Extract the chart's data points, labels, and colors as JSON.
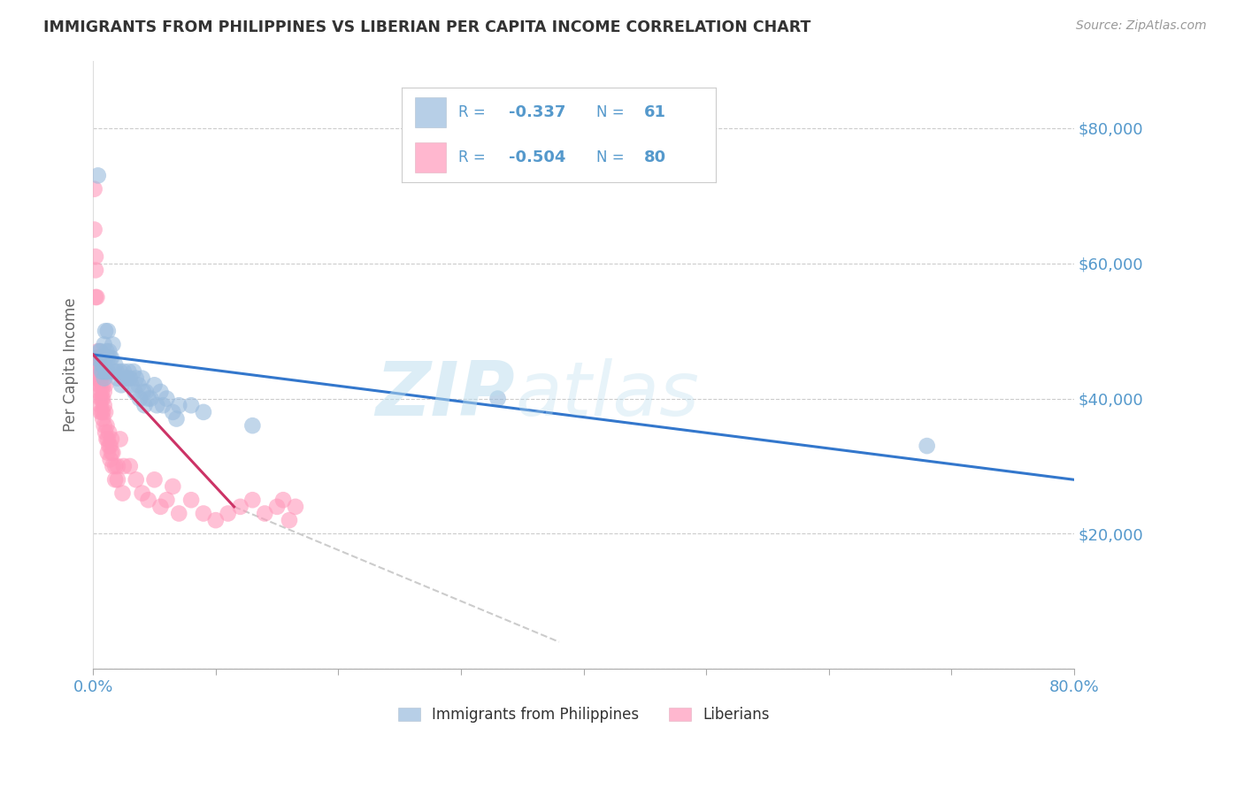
{
  "title": "IMMIGRANTS FROM PHILIPPINES VS LIBERIAN PER CAPITA INCOME CORRELATION CHART",
  "source": "Source: ZipAtlas.com",
  "ylabel": "Per Capita Income",
  "yticks": [
    0,
    20000,
    40000,
    60000,
    80000
  ],
  "ytick_labels": [
    "",
    "$20,000",
    "$40,000",
    "$60,000",
    "$80,000"
  ],
  "xlim": [
    0.0,
    0.8
  ],
  "ylim": [
    0,
    90000
  ],
  "watermark_zip": "ZIP",
  "watermark_atlas": "atlas",
  "blue_color": "#99BBDD",
  "pink_color": "#FF99BB",
  "trendline_blue": "#3377CC",
  "trendline_pink": "#CC3366",
  "trendline_dashed": "#CCCCCC",
  "background": "#FFFFFF",
  "grid_color": "#CCCCCC",
  "title_color": "#333333",
  "axis_label_color": "#5599CC",
  "legend_text_color": "#5599CC",
  "legend_r_value_color": "#CC3366",
  "legend_n_value_color": "#3377CC",
  "blue_scatter": [
    [
      0.004,
      73000
    ],
    [
      0.003,
      46000
    ],
    [
      0.005,
      47000
    ],
    [
      0.006,
      47000
    ],
    [
      0.007,
      46000
    ],
    [
      0.007,
      45000
    ],
    [
      0.007,
      44000
    ],
    [
      0.008,
      46000
    ],
    [
      0.008,
      45000
    ],
    [
      0.008,
      44000
    ],
    [
      0.009,
      48000
    ],
    [
      0.009,
      45000
    ],
    [
      0.009,
      43000
    ],
    [
      0.01,
      50000
    ],
    [
      0.01,
      46000
    ],
    [
      0.01,
      44000
    ],
    [
      0.011,
      47000
    ],
    [
      0.011,
      44000
    ],
    [
      0.012,
      50000
    ],
    [
      0.012,
      46000
    ],
    [
      0.012,
      44000
    ],
    [
      0.013,
      47000
    ],
    [
      0.014,
      46000
    ],
    [
      0.015,
      46000
    ],
    [
      0.016,
      48000
    ],
    [
      0.017,
      44000
    ],
    [
      0.018,
      45000
    ],
    [
      0.019,
      44000
    ],
    [
      0.02,
      43000
    ],
    [
      0.022,
      44000
    ],
    [
      0.023,
      42000
    ],
    [
      0.025,
      44000
    ],
    [
      0.026,
      43000
    ],
    [
      0.028,
      43000
    ],
    [
      0.029,
      44000
    ],
    [
      0.03,
      43000
    ],
    [
      0.031,
      42000
    ],
    [
      0.033,
      44000
    ],
    [
      0.034,
      41000
    ],
    [
      0.035,
      43000
    ],
    [
      0.037,
      42000
    ],
    [
      0.038,
      40000
    ],
    [
      0.04,
      43000
    ],
    [
      0.041,
      41000
    ],
    [
      0.042,
      39000
    ],
    [
      0.043,
      41000
    ],
    [
      0.045,
      40000
    ],
    [
      0.047,
      40000
    ],
    [
      0.05,
      42000
    ],
    [
      0.052,
      39000
    ],
    [
      0.055,
      41000
    ],
    [
      0.057,
      39000
    ],
    [
      0.06,
      40000
    ],
    [
      0.065,
      38000
    ],
    [
      0.068,
      37000
    ],
    [
      0.07,
      39000
    ],
    [
      0.08,
      39000
    ],
    [
      0.09,
      38000
    ],
    [
      0.13,
      36000
    ],
    [
      0.33,
      40000
    ],
    [
      0.68,
      33000
    ]
  ],
  "pink_scatter": [
    [
      0.001,
      71000
    ],
    [
      0.001,
      65000
    ],
    [
      0.002,
      61000
    ],
    [
      0.002,
      59000
    ],
    [
      0.002,
      55000
    ],
    [
      0.003,
      55000
    ],
    [
      0.003,
      46000
    ],
    [
      0.003,
      44000
    ],
    [
      0.003,
      43000
    ],
    [
      0.004,
      47000
    ],
    [
      0.004,
      46000
    ],
    [
      0.004,
      44000
    ],
    [
      0.004,
      43000
    ],
    [
      0.005,
      46000
    ],
    [
      0.005,
      45000
    ],
    [
      0.005,
      44000
    ],
    [
      0.005,
      43000
    ],
    [
      0.005,
      42000
    ],
    [
      0.005,
      41000
    ],
    [
      0.006,
      45000
    ],
    [
      0.006,
      43000
    ],
    [
      0.006,
      42000
    ],
    [
      0.006,
      40000
    ],
    [
      0.006,
      39000
    ],
    [
      0.006,
      38000
    ],
    [
      0.007,
      44000
    ],
    [
      0.007,
      43000
    ],
    [
      0.007,
      41000
    ],
    [
      0.007,
      40000
    ],
    [
      0.007,
      38000
    ],
    [
      0.008,
      42000
    ],
    [
      0.008,
      40000
    ],
    [
      0.008,
      38000
    ],
    [
      0.008,
      37000
    ],
    [
      0.009,
      41000
    ],
    [
      0.009,
      39000
    ],
    [
      0.009,
      36000
    ],
    [
      0.01,
      42000
    ],
    [
      0.01,
      38000
    ],
    [
      0.01,
      35000
    ],
    [
      0.011,
      36000
    ],
    [
      0.011,
      34000
    ],
    [
      0.012,
      34000
    ],
    [
      0.012,
      32000
    ],
    [
      0.013,
      35000
    ],
    [
      0.013,
      33000
    ],
    [
      0.014,
      33000
    ],
    [
      0.014,
      31000
    ],
    [
      0.015,
      34000
    ],
    [
      0.015,
      32000
    ],
    [
      0.016,
      32000
    ],
    [
      0.016,
      30000
    ],
    [
      0.018,
      30000
    ],
    [
      0.018,
      28000
    ],
    [
      0.02,
      30000
    ],
    [
      0.02,
      28000
    ],
    [
      0.022,
      34000
    ],
    [
      0.024,
      26000
    ],
    [
      0.025,
      30000
    ],
    [
      0.03,
      30000
    ],
    [
      0.035,
      28000
    ],
    [
      0.04,
      26000
    ],
    [
      0.045,
      25000
    ],
    [
      0.05,
      28000
    ],
    [
      0.055,
      24000
    ],
    [
      0.06,
      25000
    ],
    [
      0.065,
      27000
    ],
    [
      0.07,
      23000
    ],
    [
      0.08,
      25000
    ],
    [
      0.09,
      23000
    ],
    [
      0.1,
      22000
    ],
    [
      0.11,
      23000
    ],
    [
      0.12,
      24000
    ],
    [
      0.13,
      25000
    ],
    [
      0.14,
      23000
    ],
    [
      0.15,
      24000
    ],
    [
      0.155,
      25000
    ],
    [
      0.16,
      22000
    ],
    [
      0.165,
      24000
    ]
  ],
  "blue_trendline_x": [
    0.0,
    0.8
  ],
  "blue_trendline_y": [
    46500,
    28000
  ],
  "pink_trendline_x": [
    0.0,
    0.115
  ],
  "pink_trendline_y": [
    46500,
    24000
  ],
  "dashed_trendline_x": [
    0.115,
    0.38
  ],
  "dashed_trendline_y": [
    24000,
    4000
  ]
}
